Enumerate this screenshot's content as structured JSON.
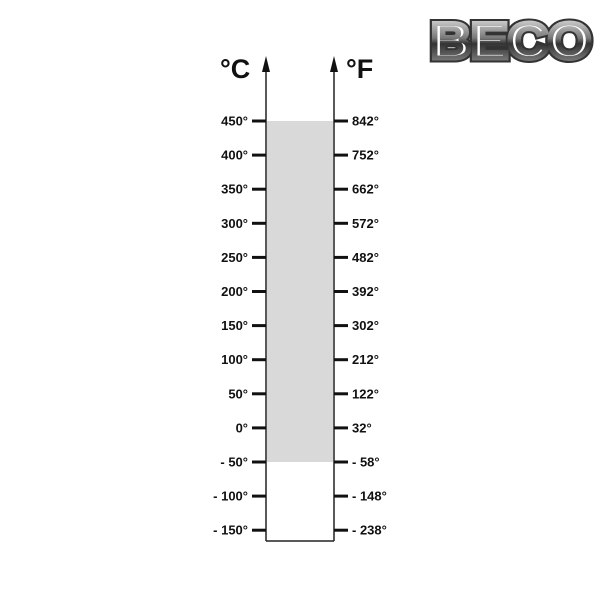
{
  "logo": {
    "text": "BECO"
  },
  "units": {
    "left": "°C",
    "right": "°F"
  },
  "scale": {
    "celsius": [
      "450°",
      "400°",
      "350°",
      "300°",
      "250°",
      "200°",
      "150°",
      "100°",
      "50°",
      "0°",
      "- 50°",
      "- 100°",
      "- 150°"
    ],
    "fahrenheit": [
      "842°",
      "752°",
      "662°",
      "572°",
      "482°",
      "392°",
      "302°",
      "212°",
      "122°",
      "32°",
      "- 58°",
      "- 148°",
      "- 238°"
    ]
  },
  "range": {
    "min_c": -50,
    "max_c": 450,
    "fill_color": "#d9d9d9"
  }
}
